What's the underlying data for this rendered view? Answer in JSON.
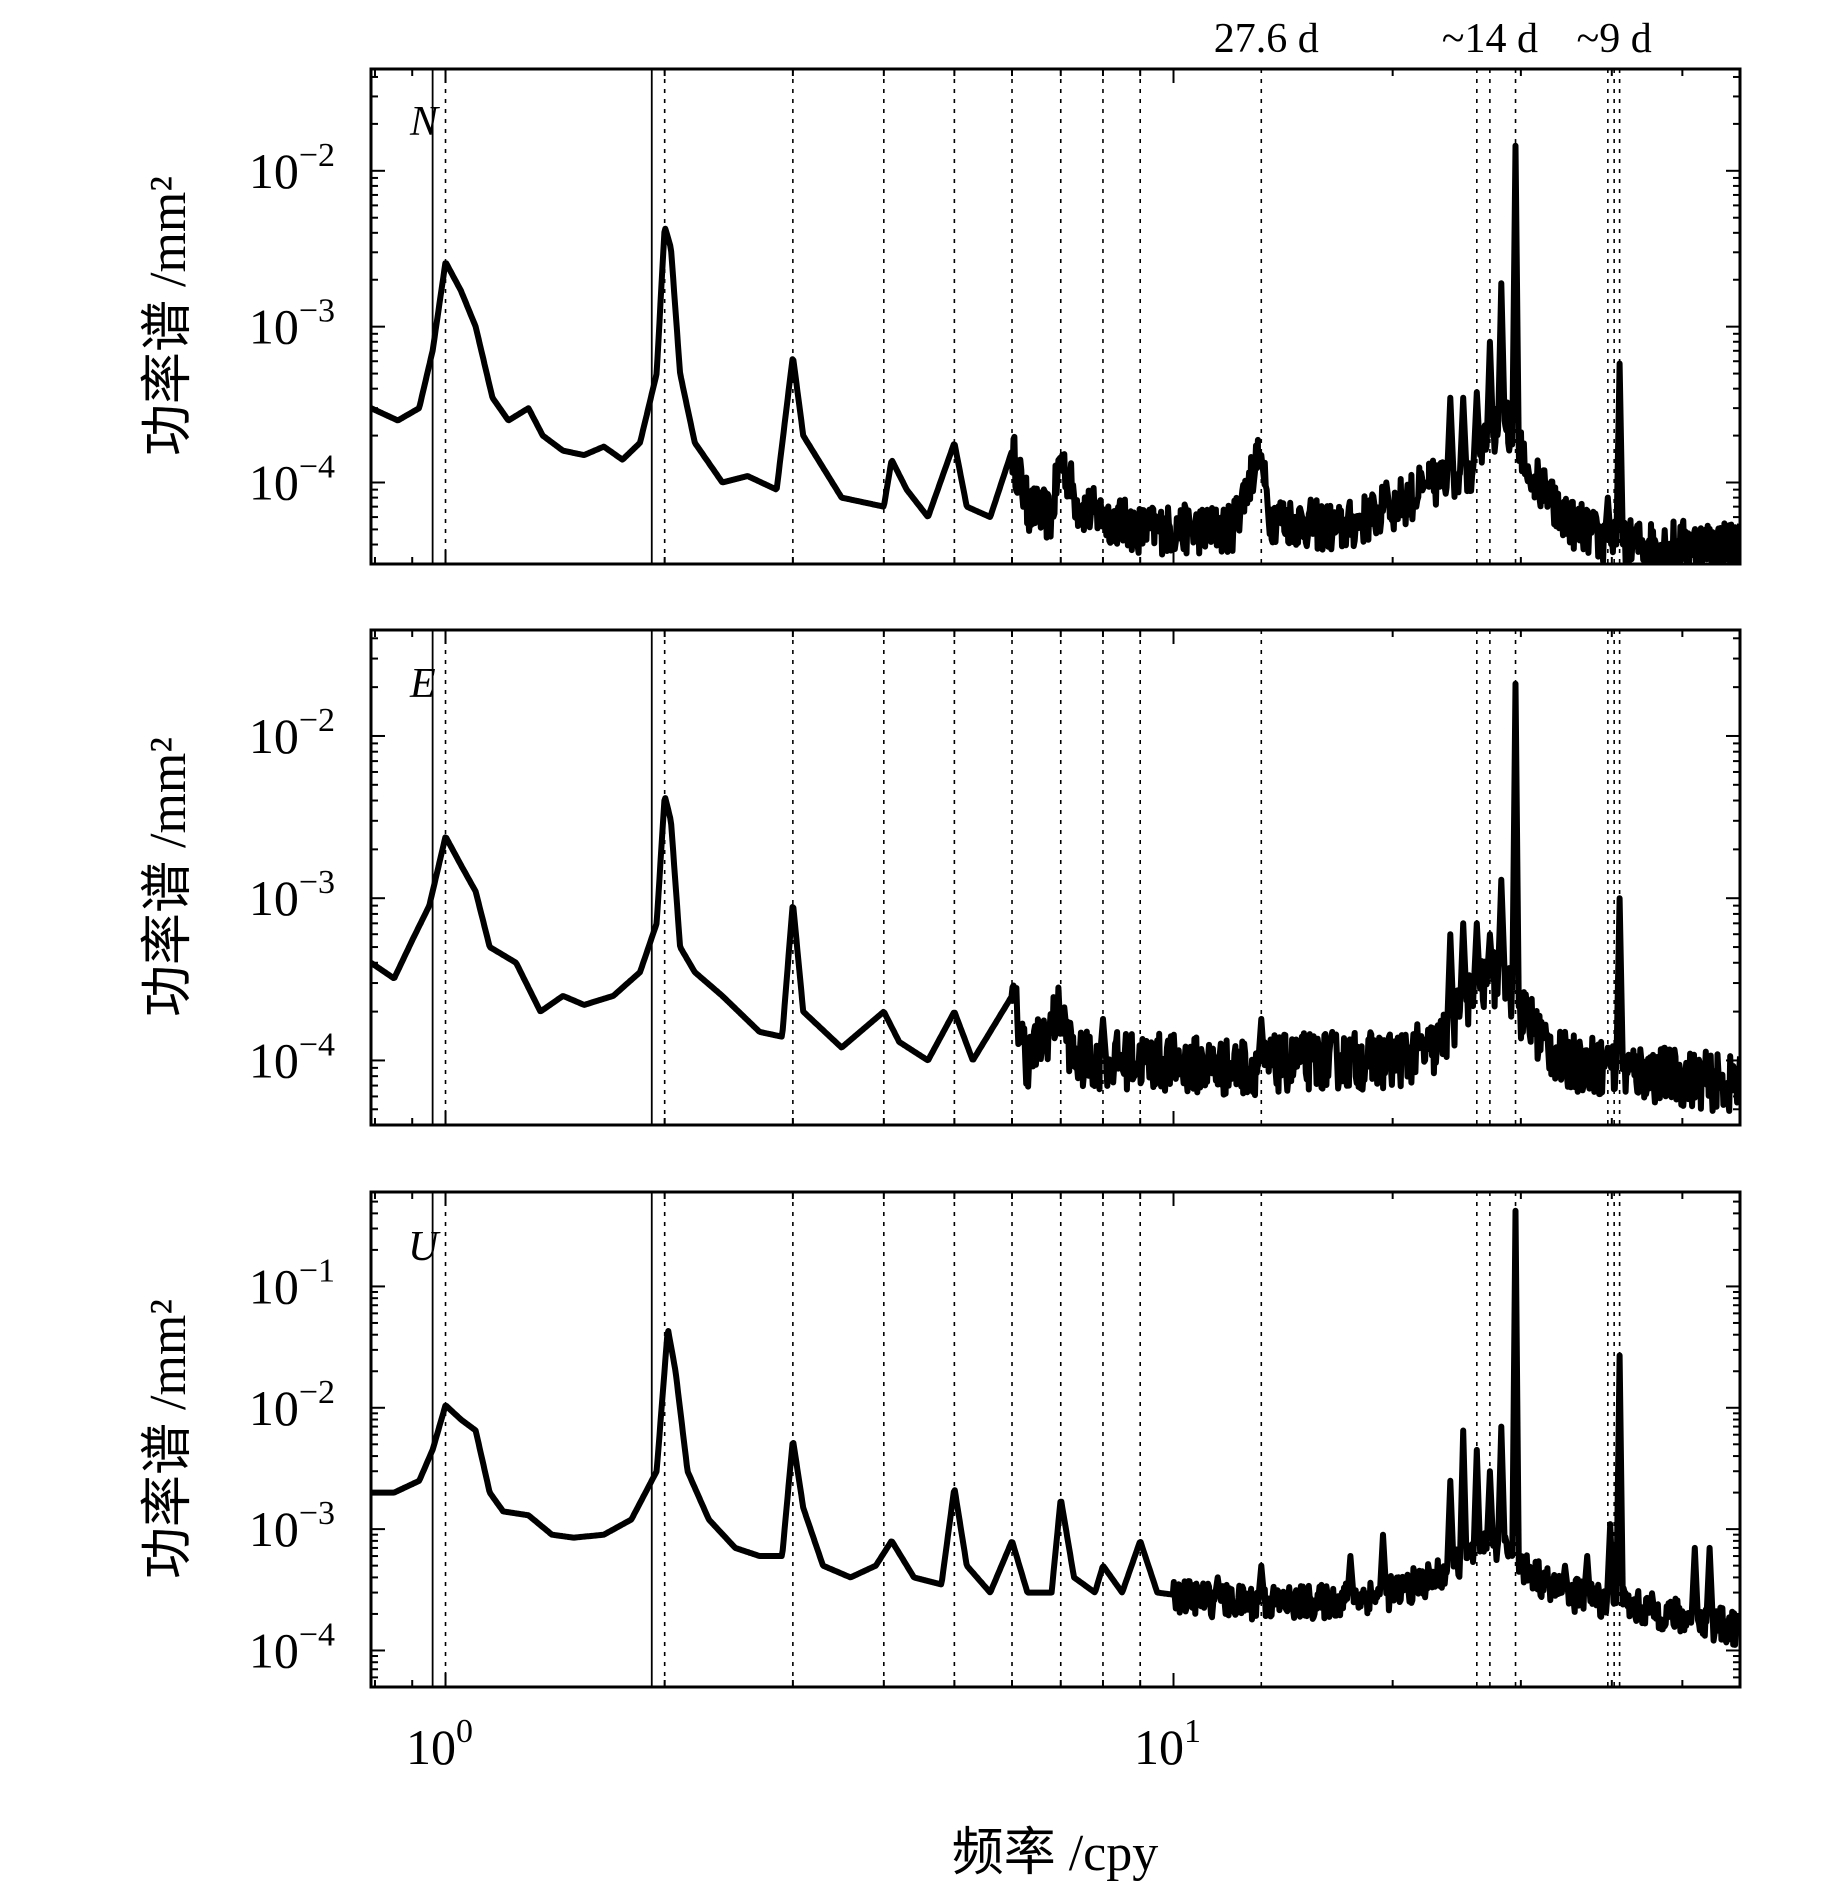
{
  "chart_data": [
    {
      "type": "line",
      "panel_label": "N",
      "xscale": "log",
      "yscale": "log",
      "xlim": [
        0.79,
        60
      ],
      "ylim": [
        3e-05,
        0.045
      ],
      "ylabel": "功率谱 /mm²",
      "ytick_values": [
        0.0001,
        0.001,
        0.01
      ],
      "yticks": [
        "10−4",
        "10−3",
        "10−2"
      ],
      "anchors": [
        [
          0.79,
          0.0003
        ],
        [
          0.86,
          0.00025
        ],
        [
          0.92,
          0.0003
        ],
        [
          0.96,
          0.0007
        ],
        [
          1.0,
          0.0026
        ],
        [
          1.05,
          0.0017
        ],
        [
          1.1,
          0.001
        ],
        [
          1.16,
          0.00035
        ],
        [
          1.22,
          0.00025
        ],
        [
          1.3,
          0.0003
        ],
        [
          1.36,
          0.0002
        ],
        [
          1.45,
          0.00016
        ],
        [
          1.55,
          0.00015
        ],
        [
          1.65,
          0.00017
        ],
        [
          1.75,
          0.00014
        ],
        [
          1.85,
          0.00018
        ],
        [
          1.95,
          0.0005
        ],
        [
          2.0,
          0.0044
        ],
        [
          2.04,
          0.0032
        ],
        [
          2.1,
          0.0005
        ],
        [
          2.2,
          0.00018
        ],
        [
          2.4,
          0.0001
        ],
        [
          2.6,
          0.00011
        ],
        [
          2.85,
          9e-05
        ],
        [
          3.0,
          0.00065
        ],
        [
          3.1,
          0.0002
        ],
        [
          3.5,
          8e-05
        ],
        [
          4.0,
          7e-05
        ],
        [
          4.1,
          0.00014
        ],
        [
          4.3,
          9e-05
        ],
        [
          4.6,
          6e-05
        ],
        [
          5.0,
          0.00018
        ],
        [
          5.2,
          7e-05
        ],
        [
          5.6,
          6e-05
        ],
        [
          6.0,
          0.00016
        ],
        [
          6.3,
          7e-05
        ],
        [
          6.8,
          6e-05
        ],
        [
          7.0,
          0.00015
        ],
        [
          7.4,
          7e-05
        ],
        [
          9,
          5e-05
        ],
        [
          12,
          5e-05
        ],
        [
          13.1,
          0.00015
        ],
        [
          13.6,
          6e-05
        ],
        [
          17,
          5e-05
        ],
        [
          20,
          7e-05
        ],
        [
          23,
          0.0001
        ],
        [
          25.5,
          0.00012
        ],
        [
          28.5,
          0.00025
        ],
        [
          30,
          0.00015
        ],
        [
          34,
          6e-05
        ],
        [
          40,
          4e-05
        ],
        [
          60,
          4e-05
        ]
      ],
      "spikes": [
        [
          13.2,
          0.00015
        ],
        [
          19.6,
          0.0001
        ],
        [
          22.2,
          0.0001
        ],
        [
          24.0,
          0.00035
        ],
        [
          25.0,
          0.00035
        ],
        [
          26.1,
          0.00038
        ],
        [
          27.2,
          0.0008
        ],
        [
          28.2,
          0.0019
        ],
        [
          29.5,
          0.0145
        ],
        [
          31.0,
          9e-05
        ],
        [
          39.5,
          8e-05
        ],
        [
          41.0,
          0.00058
        ]
      ],
      "noise_amp": 0.09,
      "noise_start": 6.0
    },
    {
      "type": "line",
      "panel_label": "E",
      "xscale": "log",
      "yscale": "log",
      "xlim": [
        0.79,
        60
      ],
      "ylim": [
        4e-05,
        0.045
      ],
      "ylabel": "功率谱 /mm²",
      "ytick_values": [
        0.0001,
        0.001,
        0.01
      ],
      "yticks": [
        "10−4",
        "10−3",
        "10−2"
      ],
      "anchors": [
        [
          0.79,
          0.0004
        ],
        [
          0.85,
          0.00032
        ],
        [
          0.9,
          0.00055
        ],
        [
          0.95,
          0.0009
        ],
        [
          1.0,
          0.0024
        ],
        [
          1.05,
          0.0016
        ],
        [
          1.1,
          0.0011
        ],
        [
          1.15,
          0.0005
        ],
        [
          1.25,
          0.0004
        ],
        [
          1.35,
          0.0002
        ],
        [
          1.45,
          0.00025
        ],
        [
          1.55,
          0.00022
        ],
        [
          1.7,
          0.00025
        ],
        [
          1.85,
          0.00035
        ],
        [
          1.95,
          0.0007
        ],
        [
          2.0,
          0.0043
        ],
        [
          2.04,
          0.003
        ],
        [
          2.1,
          0.0005
        ],
        [
          2.2,
          0.00035
        ],
        [
          2.4,
          0.00025
        ],
        [
          2.7,
          0.00015
        ],
        [
          2.9,
          0.00014
        ],
        [
          3.0,
          0.00095
        ],
        [
          3.1,
          0.0002
        ],
        [
          3.5,
          0.00012
        ],
        [
          4.0,
          0.0002
        ],
        [
          4.2,
          0.00013
        ],
        [
          4.6,
          0.0001
        ],
        [
          5.0,
          0.0002
        ],
        [
          5.3,
          0.0001
        ],
        [
          6.0,
          0.00025
        ],
        [
          6.3,
          0.0001
        ],
        [
          7.0,
          0.0002
        ],
        [
          7.3,
          0.0001
        ],
        [
          9,
          0.0001
        ],
        [
          12,
          9e-05
        ],
        [
          16,
          0.0001
        ],
        [
          20,
          0.0001
        ],
        [
          23,
          0.00012
        ],
        [
          25.5,
          0.00025
        ],
        [
          28.5,
          0.00035
        ],
        [
          30,
          0.0002
        ],
        [
          34,
          0.0001
        ],
        [
          40,
          9e-05
        ],
        [
          60,
          7e-05
        ]
      ],
      "spikes": [
        [
          8.0,
          0.00018
        ],
        [
          13.2,
          0.00018
        ],
        [
          24.0,
          0.0006
        ],
        [
          25.0,
          0.0007
        ],
        [
          26.1,
          0.0007
        ],
        [
          27.2,
          0.0006
        ],
        [
          28.2,
          0.0013
        ],
        [
          29.5,
          0.021
        ],
        [
          39.5,
          0.00012
        ],
        [
          41.0,
          0.001
        ]
      ],
      "noise_amp": 0.1,
      "noise_start": 6.0
    },
    {
      "type": "line",
      "panel_label": "U",
      "xscale": "log",
      "yscale": "log",
      "xlim": [
        0.79,
        60
      ],
      "ylim": [
        5e-05,
        0.6
      ],
      "ylabel": "功率谱 /mm²",
      "ytick_values": [
        0.0001,
        0.001,
        0.01,
        0.1
      ],
      "yticks": [
        "10−4",
        "10−3",
        "10−2",
        "10−1"
      ],
      "xtick_values": [
        1,
        10
      ],
      "xticks": [
        "100",
        "101"
      ],
      "anchors": [
        [
          0.79,
          0.002
        ],
        [
          0.85,
          0.002
        ],
        [
          0.92,
          0.0025
        ],
        [
          0.96,
          0.0045
        ],
        [
          1.0,
          0.0105
        ],
        [
          1.05,
          0.008
        ],
        [
          1.1,
          0.0065
        ],
        [
          1.15,
          0.002
        ],
        [
          1.2,
          0.0014
        ],
        [
          1.3,
          0.0013
        ],
        [
          1.4,
          0.0009
        ],
        [
          1.5,
          0.00085
        ],
        [
          1.65,
          0.0009
        ],
        [
          1.8,
          0.0012
        ],
        [
          1.95,
          0.003
        ],
        [
          2.02,
          0.045
        ],
        [
          2.07,
          0.02
        ],
        [
          2.15,
          0.003
        ],
        [
          2.3,
          0.0012
        ],
        [
          2.5,
          0.0007
        ],
        [
          2.7,
          0.0006
        ],
        [
          2.9,
          0.0006
        ],
        [
          3.0,
          0.0055
        ],
        [
          3.1,
          0.0015
        ],
        [
          3.3,
          0.0005
        ],
        [
          3.6,
          0.0004
        ],
        [
          3.9,
          0.0005
        ],
        [
          4.1,
          0.0008
        ],
        [
          4.4,
          0.0004
        ],
        [
          4.8,
          0.00035
        ],
        [
          5.0,
          0.0022
        ],
        [
          5.2,
          0.0005
        ],
        [
          5.6,
          0.0003
        ],
        [
          6.0,
          0.0008
        ],
        [
          6.3,
          0.0003
        ],
        [
          6.8,
          0.0003
        ],
        [
          7.0,
          0.0018
        ],
        [
          7.3,
          0.0004
        ],
        [
          7.8,
          0.0003
        ],
        [
          8.0,
          0.0005
        ],
        [
          8.5,
          0.0003
        ],
        [
          9.0,
          0.0008
        ],
        [
          9.5,
          0.0003
        ],
        [
          12,
          0.00025
        ],
        [
          16,
          0.00025
        ],
        [
          20,
          0.0003
        ],
        [
          23,
          0.0004
        ],
        [
          25.5,
          0.0006
        ],
        [
          28.5,
          0.0008
        ],
        [
          30,
          0.0005
        ],
        [
          34,
          0.0003
        ],
        [
          40,
          0.00025
        ],
        [
          60,
          0.00015
        ]
      ],
      "spikes": [
        [
          11.5,
          0.0004
        ],
        [
          13.2,
          0.0005
        ],
        [
          17.5,
          0.0006
        ],
        [
          19.4,
          0.0009
        ],
        [
          24.0,
          0.0025
        ],
        [
          25.0,
          0.0065
        ],
        [
          26.1,
          0.0045
        ],
        [
          27.2,
          0.003
        ],
        [
          28.2,
          0.007
        ],
        [
          29.5,
          0.42
        ],
        [
          34.5,
          0.0005
        ],
        [
          37.0,
          0.0006
        ],
        [
          39.8,
          0.0011
        ],
        [
          41.0,
          0.027
        ],
        [
          52.0,
          0.0007
        ],
        [
          54.5,
          0.0007
        ]
      ],
      "noise_amp": 0.08,
      "noise_start": 10.0
    }
  ],
  "vertical_lines": {
    "solid": [
      0.96,
      1.92
    ],
    "dotted": [
      1.0,
      2.0,
      3.0,
      4.0,
      5.0,
      6.0,
      7.0,
      8.0,
      9.0,
      13.2,
      26.1,
      27.2,
      29.5,
      39.5,
      40.3,
      41.0
    ]
  },
  "top_annotations": [
    {
      "x": 13.2,
      "text": "27.6 d"
    },
    {
      "x": 27.2,
      "text": "~14 d"
    },
    {
      "x": 40.3,
      "text": "~9 d"
    }
  ],
  "xlabel": "频率 /cpy"
}
